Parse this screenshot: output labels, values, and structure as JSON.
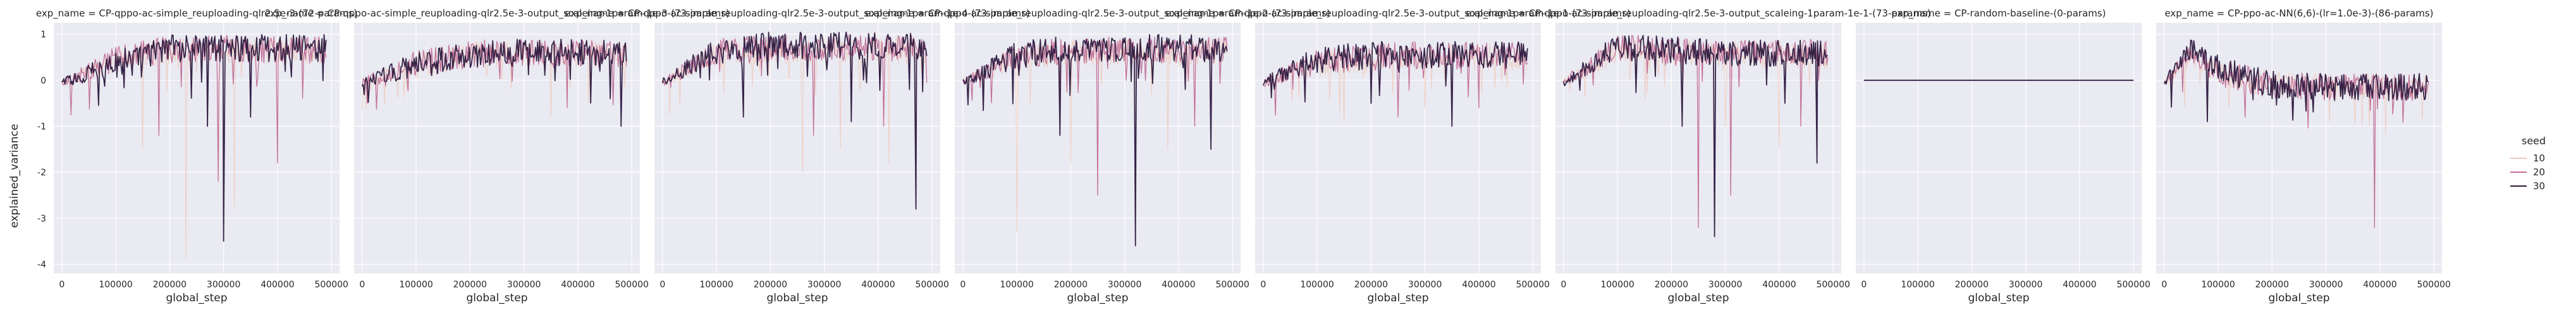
{
  "figure": {
    "ylabel": "explained_variance",
    "xlabel": "global_step",
    "legend": {
      "title": "seed",
      "entries": [
        "10",
        "20",
        "30"
      ]
    },
    "colors": {
      "seed_10": "#efc8b8",
      "seed_20": "#c06c93",
      "seed_30": "#2d1a3e",
      "panel_bg": "#eaeaf2",
      "grid": "#ffffff"
    }
  },
  "chart_data": [
    {
      "type": "line",
      "title": "exp_name = CP-qppo-ac-simple_reuploading-qlr2.5e-3-(72-params)",
      "xlabel": "global_step",
      "ylabel": "explained_variance",
      "xlim": [
        0,
        500000
      ],
      "ylim": [
        -4.2,
        1.25
      ],
      "legend_position": "right",
      "x_ticks": [
        "0",
        "100000",
        "200000",
        "300000",
        "400000",
        "500000"
      ],
      "y_ticks": [
        "1",
        "0",
        "-1",
        "-2",
        "-3",
        "-4"
      ],
      "series": [
        {
          "name": "10",
          "x": [
            0,
            100000,
            200000,
            300000,
            400000,
            490000
          ],
          "values": [
            0.0,
            0.55,
            0.8,
            0.8,
            0.78,
            0.8
          ],
          "spikes": [
            [
              230000,
              -3.9
            ],
            [
              320000,
              -2.8
            ],
            [
              150000,
              -1.5
            ]
          ]
        },
        {
          "name": "20",
          "x": [
            0,
            100000,
            200000,
            300000,
            400000,
            490000
          ],
          "values": [
            0.0,
            0.6,
            0.82,
            0.85,
            0.8,
            0.82
          ],
          "spikes": [
            [
              290000,
              -2.2
            ],
            [
              400000,
              -1.8
            ],
            [
              180000,
              -1.2
            ]
          ]
        },
        {
          "name": "30",
          "x": [
            0,
            100000,
            200000,
            300000,
            400000,
            490000
          ],
          "values": [
            0.0,
            0.5,
            0.85,
            0.85,
            0.85,
            0.85
          ],
          "spikes": [
            [
              300000,
              -3.5
            ],
            [
              270000,
              -1.0
            ],
            [
              350000,
              -0.8
            ]
          ]
        }
      ]
    },
    {
      "type": "line",
      "title": "exp_name = CP-qppo-ac-simple_reuploading-qlr2.5e-3-output_scaleing-1param-1e-3-(73-params)",
      "xlabel": "global_step",
      "ylabel": "explained_variance",
      "xlim": [
        0,
        500000
      ],
      "ylim": [
        -4.2,
        1.25
      ],
      "legend_position": "right",
      "x_ticks": [
        "0",
        "100000",
        "200000",
        "300000",
        "400000",
        "500000"
      ],
      "series": [
        {
          "name": "10",
          "x": [
            0,
            100000,
            200000,
            300000,
            400000,
            490000
          ],
          "values": [
            0.0,
            0.45,
            0.7,
            0.72,
            0.7,
            0.72
          ],
          "spikes": [
            [
              350000,
              -0.8
            ],
            [
              420000,
              -0.5
            ]
          ]
        },
        {
          "name": "20",
          "x": [
            0,
            100000,
            200000,
            300000,
            400000,
            490000
          ],
          "values": [
            0.0,
            0.5,
            0.72,
            0.75,
            0.72,
            0.72
          ],
          "spikes": [
            [
              380000,
              -0.6
            ]
          ]
        },
        {
          "name": "30",
          "x": [
            0,
            100000,
            200000,
            300000,
            400000,
            490000
          ],
          "values": [
            0.0,
            0.48,
            0.7,
            0.75,
            0.75,
            0.75
          ],
          "spikes": [
            [
              480000,
              -1.0
            ],
            [
              460000,
              -0.4
            ]
          ]
        }
      ]
    },
    {
      "type": "line",
      "title": "exp_name = CP-qppo-ac-simple_reuploading-qlr2.5e-3-output_scaleing-1param-1e-4-(73-params)",
      "xlabel": "global_step",
      "ylabel": "explained_variance",
      "xlim": [
        0,
        500000
      ],
      "ylim": [
        -4.2,
        1.25
      ],
      "legend_position": "right",
      "x_ticks": [
        "0",
        "100000",
        "200000",
        "300000",
        "400000",
        "500000"
      ],
      "series": [
        {
          "name": "10",
          "x": [
            0,
            100000,
            200000,
            300000,
            400000,
            490000
          ],
          "values": [
            0.0,
            0.7,
            0.8,
            0.8,
            0.8,
            0.8
          ],
          "spikes": [
            [
              260000,
              -2.0
            ],
            [
              330000,
              -1.5
            ],
            [
              420000,
              -1.8
            ]
          ]
        },
        {
          "name": "20",
          "x": [
            0,
            100000,
            200000,
            300000,
            400000,
            490000
          ],
          "values": [
            0.0,
            0.75,
            0.85,
            0.85,
            0.85,
            0.85
          ],
          "spikes": [
            [
              280000,
              -1.2
            ],
            [
              410000,
              -1.0
            ]
          ]
        },
        {
          "name": "30",
          "x": [
            0,
            100000,
            200000,
            300000,
            400000,
            490000
          ],
          "values": [
            0.0,
            0.8,
            0.9,
            0.9,
            0.9,
            0.9
          ],
          "spikes": [
            [
              470000,
              -2.8
            ],
            [
              150000,
              -0.8
            ],
            [
              350000,
              -0.9
            ]
          ]
        }
      ]
    },
    {
      "type": "line",
      "title": "exp_name = CP-qppo-ac-simple_reuploading-qlr2.5e-3-output_scaleing-1param-1e-2-(73-params)",
      "xlabel": "global_step",
      "ylabel": "explained_variance",
      "xlim": [
        0,
        500000
      ],
      "ylim": [
        -4.2,
        1.25
      ],
      "legend_position": "right",
      "x_ticks": [
        "0",
        "100000",
        "200000",
        "300000",
        "400000",
        "500000"
      ],
      "series": [
        {
          "name": "10",
          "x": [
            0,
            100000,
            200000,
            300000,
            400000,
            490000
          ],
          "values": [
            0.0,
            0.6,
            0.75,
            0.75,
            0.75,
            0.75
          ],
          "spikes": [
            [
              100000,
              -3.3
            ],
            [
              200000,
              -1.8
            ],
            [
              380000,
              -1.5
            ]
          ]
        },
        {
          "name": "20",
          "x": [
            0,
            100000,
            200000,
            300000,
            400000,
            490000
          ],
          "values": [
            0.0,
            0.65,
            0.8,
            0.8,
            0.8,
            0.8
          ],
          "spikes": [
            [
              250000,
              -2.5
            ],
            [
              430000,
              -1.0
            ]
          ]
        },
        {
          "name": "30",
          "x": [
            0,
            100000,
            200000,
            300000,
            400000,
            490000
          ],
          "values": [
            0.0,
            0.7,
            0.85,
            0.85,
            0.85,
            0.85
          ],
          "spikes": [
            [
              320000,
              -3.6
            ],
            [
              180000,
              -1.2
            ],
            [
              460000,
              -1.5
            ]
          ]
        }
      ]
    },
    {
      "type": "line",
      "title": "exp_name = CP-qppo-ac-simple_reuploading-qlr2.5e-3-output_scaleing-1param-1e-1-(73-params)",
      "xlabel": "global_step",
      "ylabel": "explained_variance",
      "xlim": [
        0,
        500000
      ],
      "ylim": [
        -4.2,
        1.25
      ],
      "legend_position": "right",
      "x_ticks": [
        "0",
        "100000",
        "200000",
        "300000",
        "400000",
        "500000"
      ],
      "series": [
        {
          "name": "10",
          "x": [
            0,
            100000,
            200000,
            300000,
            400000,
            490000
          ],
          "values": [
            0.0,
            0.5,
            0.6,
            0.65,
            0.65,
            0.65
          ],
          "spikes": [
            [
              150000,
              -0.9
            ],
            [
              300000,
              -0.6
            ]
          ]
        },
        {
          "name": "20",
          "x": [
            0,
            100000,
            200000,
            300000,
            400000,
            490000
          ],
          "values": [
            0.0,
            0.55,
            0.65,
            0.7,
            0.7,
            0.7
          ],
          "spikes": [
            [
              250000,
              -0.8
            ],
            [
              400000,
              -0.6
            ]
          ]
        },
        {
          "name": "30",
          "x": [
            0,
            100000,
            200000,
            300000,
            400000,
            490000
          ],
          "values": [
            0.0,
            0.6,
            0.7,
            0.7,
            0.7,
            0.7
          ],
          "spikes": [
            [
              350000,
              -1.0
            ],
            [
              200000,
              -0.5
            ]
          ]
        }
      ]
    },
    {
      "type": "line",
      "title": "exp_name = CP-qppo-ac-simple_reuploading-qlr2.5e-3-output_scaleing-1param-1e-1-(73-params)",
      "xlabel": "global_step",
      "ylabel": "explained_variance",
      "xlim": [
        0,
        500000
      ],
      "ylim": [
        -4.2,
        1.25
      ],
      "legend_position": "right",
      "x_ticks": [
        "0",
        "100000",
        "200000",
        "300000",
        "400000",
        "500000"
      ],
      "series": [
        {
          "name": "10",
          "x": [
            0,
            100000,
            200000,
            300000,
            400000,
            490000
          ],
          "values": [
            0.0,
            0.8,
            0.75,
            0.7,
            0.7,
            0.7
          ],
          "spikes": [
            [
              400000,
              -1.5
            ],
            [
              300000,
              -1.0
            ]
          ]
        },
        {
          "name": "20",
          "x": [
            0,
            100000,
            200000,
            300000,
            400000,
            490000
          ],
          "values": [
            0.0,
            0.85,
            0.8,
            0.75,
            0.75,
            0.75
          ],
          "spikes": [
            [
              250000,
              -3.2
            ],
            [
              310000,
              -2.5
            ],
            [
              440000,
              -1.0
            ]
          ]
        },
        {
          "name": "30",
          "x": [
            0,
            100000,
            200000,
            300000,
            400000,
            490000
          ],
          "values": [
            0.0,
            0.9,
            0.8,
            0.75,
            0.75,
            0.75
          ],
          "spikes": [
            [
              280000,
              -3.4
            ],
            [
              220000,
              -1.0
            ],
            [
              470000,
              -1.8
            ]
          ]
        }
      ]
    },
    {
      "type": "line",
      "title": "exp_name = CP-random-baseline-(0-params)",
      "xlabel": "global_step",
      "ylabel": "explained_variance",
      "xlim": [
        0,
        500000
      ],
      "ylim": [
        -4.2,
        1.25
      ],
      "legend_position": "right",
      "x_ticks": [
        "0",
        "100000",
        "200000",
        "300000",
        "400000",
        "500000"
      ],
      "series": [
        {
          "name": "10",
          "x": [
            0,
            500000
          ],
          "values": [
            0.0,
            0.0
          ],
          "spikes": []
        },
        {
          "name": "20",
          "x": [
            0,
            500000
          ],
          "values": [
            0.0,
            0.0
          ],
          "spikes": []
        },
        {
          "name": "30",
          "x": [
            0,
            500000
          ],
          "values": [
            0.0,
            0.0
          ],
          "spikes": []
        }
      ]
    },
    {
      "type": "line",
      "title": "exp_name = CP-ppo-ac-NN(6,6)-(lr=1.0e-3)-(86-params)",
      "xlabel": "global_step",
      "ylabel": "explained_variance",
      "xlim": [
        0,
        500000
      ],
      "ylim": [
        -4.2,
        1.25
      ],
      "legend_position": "right",
      "x_ticks": [
        "0",
        "100000",
        "200000",
        "300000",
        "400000",
        "500000"
      ],
      "series": [
        {
          "name": "10",
          "x": [
            0,
            50000,
            100000,
            200000,
            300000,
            400000,
            490000
          ],
          "values": [
            0.0,
            0.6,
            0.3,
            0.05,
            0.0,
            0.0,
            0.0
          ],
          "spikes": [
            [
              120000,
              -0.6
            ]
          ]
        },
        {
          "name": "20",
          "x": [
            0,
            50000,
            100000,
            200000,
            300000,
            400000,
            490000
          ],
          "values": [
            0.0,
            0.7,
            0.3,
            0.05,
            0.0,
            0.0,
            0.0
          ],
          "spikes": [
            [
              390000,
              -3.2
            ],
            [
              150000,
              -0.8
            ]
          ]
        },
        {
          "name": "30",
          "x": [
            0,
            50000,
            100000,
            200000,
            300000,
            400000,
            490000
          ],
          "values": [
            0.0,
            0.8,
            0.4,
            0.05,
            0.0,
            0.0,
            0.0
          ],
          "spikes": [
            [
              80000,
              -0.9
            ],
            [
              200000,
              -0.4
            ]
          ]
        }
      ]
    }
  ]
}
